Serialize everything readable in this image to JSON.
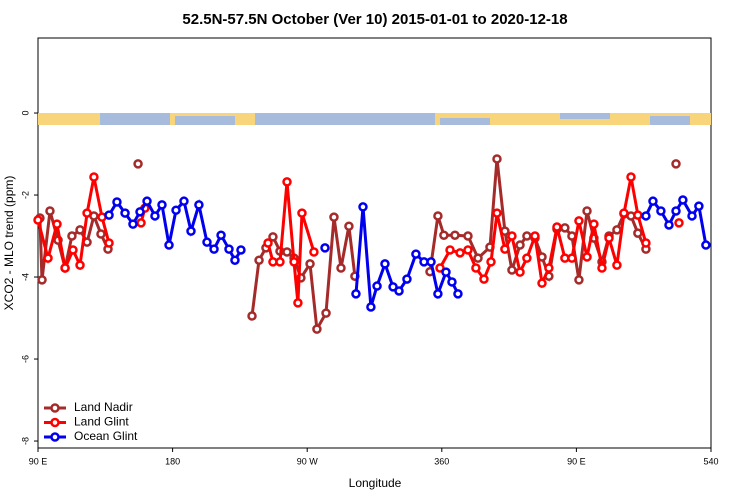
{
  "chart_data": {
    "type": "line",
    "title": "52.5N-57.5N October (Ver 10)   2015-01-01 to 2020-12-18",
    "x_label": "Longitude",
    "y_label": "XCO2 - MLO trend (ppm)",
    "xlim": [
      90,
      540
    ],
    "ylim": [
      -8.17,
      1.83
    ],
    "xticks": [
      {
        "value": 90,
        "label": "90 E"
      },
      180,
      {
        "value": 270,
        "label": "90 W"
      },
      360,
      {
        "value": 450,
        "label": "90 E"
      },
      540
    ],
    "xtick_labels_alt": null,
    "yticks": [
      0,
      -2,
      -4,
      -6,
      -8
    ],
    "legend": "bottom-left",
    "series": [
      {
        "name": "Land Nadir",
        "color": "#a52a2a",
        "x": [
          91.3,
          92.7,
          98.0,
          103.4,
          108.1,
          112.7,
          118.1,
          122.8,
          127.4,
          132.1,
          136.8,
          null,
          156.9,
          null,
          233.1,
          237.8,
          242.4,
          247.1,
          251.8,
          256.5,
          261.2,
          265.8,
          271.9,
          276.5,
          282.6,
          287.9,
          292.6,
          297.9,
          301.9,
          null,
          352.1,
          357.4,
          361.4,
          368.8,
          377.5,
          384.2,
          392.2,
          396.9,
          402.2,
          406.9,
          412.3,
          416.9,
          422.3,
          427.0,
          431.6,
          437.0,
          442.3,
          447.0,
          451.7,
          457.1,
          461.7,
          467.1,
          471.8,
          477.1,
          481.8,
          486.5,
          491.1,
          496.5,
          null,
          516.6
        ],
        "values": [
          -2.56,
          -4.07,
          -2.39,
          -3.1,
          -3.78,
          -3.0,
          -2.85,
          -3.15,
          -2.51,
          -2.95,
          -3.32,
          null,
          -1.24,
          null,
          -4.95,
          -3.59,
          -3.29,
          -3.02,
          -3.37,
          -3.39,
          -3.54,
          -4.02,
          -3.68,
          -5.27,
          -4.88,
          -2.54,
          -3.78,
          -2.76,
          -3.98,
          null,
          -3.87,
          -2.51,
          -2.98,
          -2.98,
          -3.0,
          -3.54,
          -3.27,
          -1.12,
          -2.88,
          -3.83,
          -3.22,
          -3.0,
          -3.05,
          -3.51,
          -3.98,
          -2.83,
          -2.8,
          -3.0,
          -4.07,
          -2.39,
          -3.05,
          -3.63,
          -3.0,
          -2.85,
          -2.46,
          -2.51,
          -2.93,
          -3.32,
          null,
          -1.24
        ]
      },
      {
        "name": "Land Glint",
        "color": "#ff0000",
        "x": [
          90.0,
          96.7,
          102.7,
          108.1,
          113.4,
          118.1,
          122.8,
          127.4,
          132.8,
          137.5,
          null,
          158.9,
          161.5,
          null,
          243.8,
          247.1,
          251.8,
          256.5,
          261.2,
          263.8,
          266.5,
          274.5,
          null,
          358.8,
          365.5,
          372.2,
          377.5,
          382.8,
          388.2,
          392.9,
          396.9,
          402.2,
          406.9,
          412.3,
          416.9,
          422.3,
          427.0,
          431.6,
          437.0,
          442.3,
          447.0,
          451.7,
          457.1,
          461.7,
          467.1,
          471.8,
          477.1,
          481.8,
          486.5,
          491.1,
          496.5,
          null,
          518.6
        ],
        "values": [
          -2.61,
          -3.54,
          -2.71,
          -3.78,
          -3.34,
          -3.71,
          -2.44,
          -1.56,
          -2.54,
          -3.17,
          null,
          -2.68,
          -2.32,
          null,
          -3.17,
          -3.63,
          -3.63,
          -1.68,
          -3.63,
          -4.63,
          -2.44,
          -3.39,
          null,
          -3.78,
          -3.34,
          -3.41,
          -3.34,
          -3.78,
          -4.05,
          -3.63,
          -2.44,
          -3.32,
          -3.0,
          -3.88,
          -3.54,
          -3.0,
          -4.15,
          -3.78,
          -2.78,
          -3.54,
          -3.54,
          -2.63,
          -3.51,
          -2.71,
          -3.78,
          -3.05,
          -3.71,
          -2.44,
          -1.56,
          -2.49,
          -3.17,
          null,
          -2.68
        ]
      },
      {
        "name": "Ocean Glint",
        "color": "#0000ee",
        "x": [
          137.5,
          142.8,
          148.2,
          153.5,
          158.2,
          162.9,
          168.2,
          172.9,
          177.6,
          182.3,
          187.6,
          192.3,
          197.6,
          203.0,
          207.7,
          212.4,
          217.7,
          221.7,
          225.7,
          null,
          281.9,
          null,
          302.6,
          307.3,
          312.6,
          316.7,
          322.0,
          327.4,
          331.4,
          336.7,
          342.7,
          348.1,
          352.8,
          357.4,
          362.8,
          366.8,
          370.8,
          null,
          496.5,
          501.2,
          506.5,
          511.9,
          516.6,
          521.2,
          527.3,
          531.9,
          536.6
        ],
        "values": [
          -2.49,
          -2.17,
          -2.44,
          -2.71,
          -2.41,
          -2.15,
          -2.51,
          -2.24,
          -3.22,
          -2.37,
          -2.15,
          -2.88,
          -2.24,
          -3.15,
          -3.32,
          -2.98,
          -3.32,
          -3.59,
          -3.34,
          null,
          -3.29,
          null,
          -4.41,
          -2.29,
          -4.73,
          -4.22,
          -3.68,
          -4.24,
          -4.34,
          -4.05,
          -3.44,
          -3.63,
          -3.63,
          -4.41,
          -3.88,
          -4.12,
          -4.41,
          null,
          -2.51,
          -2.15,
          -2.39,
          -2.73,
          -2.39,
          -2.12,
          -2.51,
          -2.27,
          -3.22
        ]
      }
    ]
  }
}
